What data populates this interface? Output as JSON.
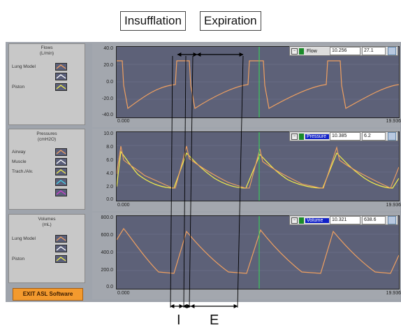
{
  "annotations": {
    "insufflation": "Insufflation",
    "expiration": "Expiration",
    "i_label": "I",
    "e_label": "E"
  },
  "panels": {
    "flows": {
      "title_line1": "Flows",
      "title_line2": "(L/min)",
      "items": [
        "Lung Model",
        "Piston"
      ]
    },
    "pressures": {
      "title_line1": "Pressures",
      "title_line2": "(cmH2O)",
      "items": [
        "Airway",
        "Muscle",
        "Trach./Alv."
      ]
    },
    "volumes": {
      "title_line1": "Volumes",
      "title_line2": "(mL)",
      "items": [
        "Lung Model",
        "Piston"
      ]
    }
  },
  "exit_button": "EXIT ASL Software",
  "colors": {
    "orange": "#f0a060",
    "yellow": "#f5f04a",
    "white": "#ffffff",
    "cyan": "#44d4e8",
    "magenta": "#d040d0",
    "cursor": "#33dd55",
    "plot_bg": "#5d6178"
  },
  "graphs": [
    {
      "palette": {
        "name": "Flow",
        "x": "10.256",
        "y": "27.1",
        "selected": false
      },
      "y_ticks": [
        "40.0",
        "20.0",
        "0.0",
        "-20.0",
        "-40.0"
      ],
      "x_start": "0.000",
      "x_end": "19.936"
    },
    {
      "palette": {
        "name": "Pressure",
        "x": "10.385",
        "y": "6.2",
        "selected": true
      },
      "y_ticks": [
        "10.0",
        "8.0",
        "6.0",
        "4.0",
        "2.0",
        "0.0"
      ],
      "x_start": "0.000",
      "x_end": "19.936"
    },
    {
      "palette": {
        "name": "Volume",
        "x": "10.321",
        "y": "638.6",
        "selected": true
      },
      "y_ticks": [
        "800.0",
        "600.0",
        "400.0",
        "200.0",
        "0.0"
      ],
      "x_start": "0.000",
      "x_end": "19.936"
    }
  ]
}
